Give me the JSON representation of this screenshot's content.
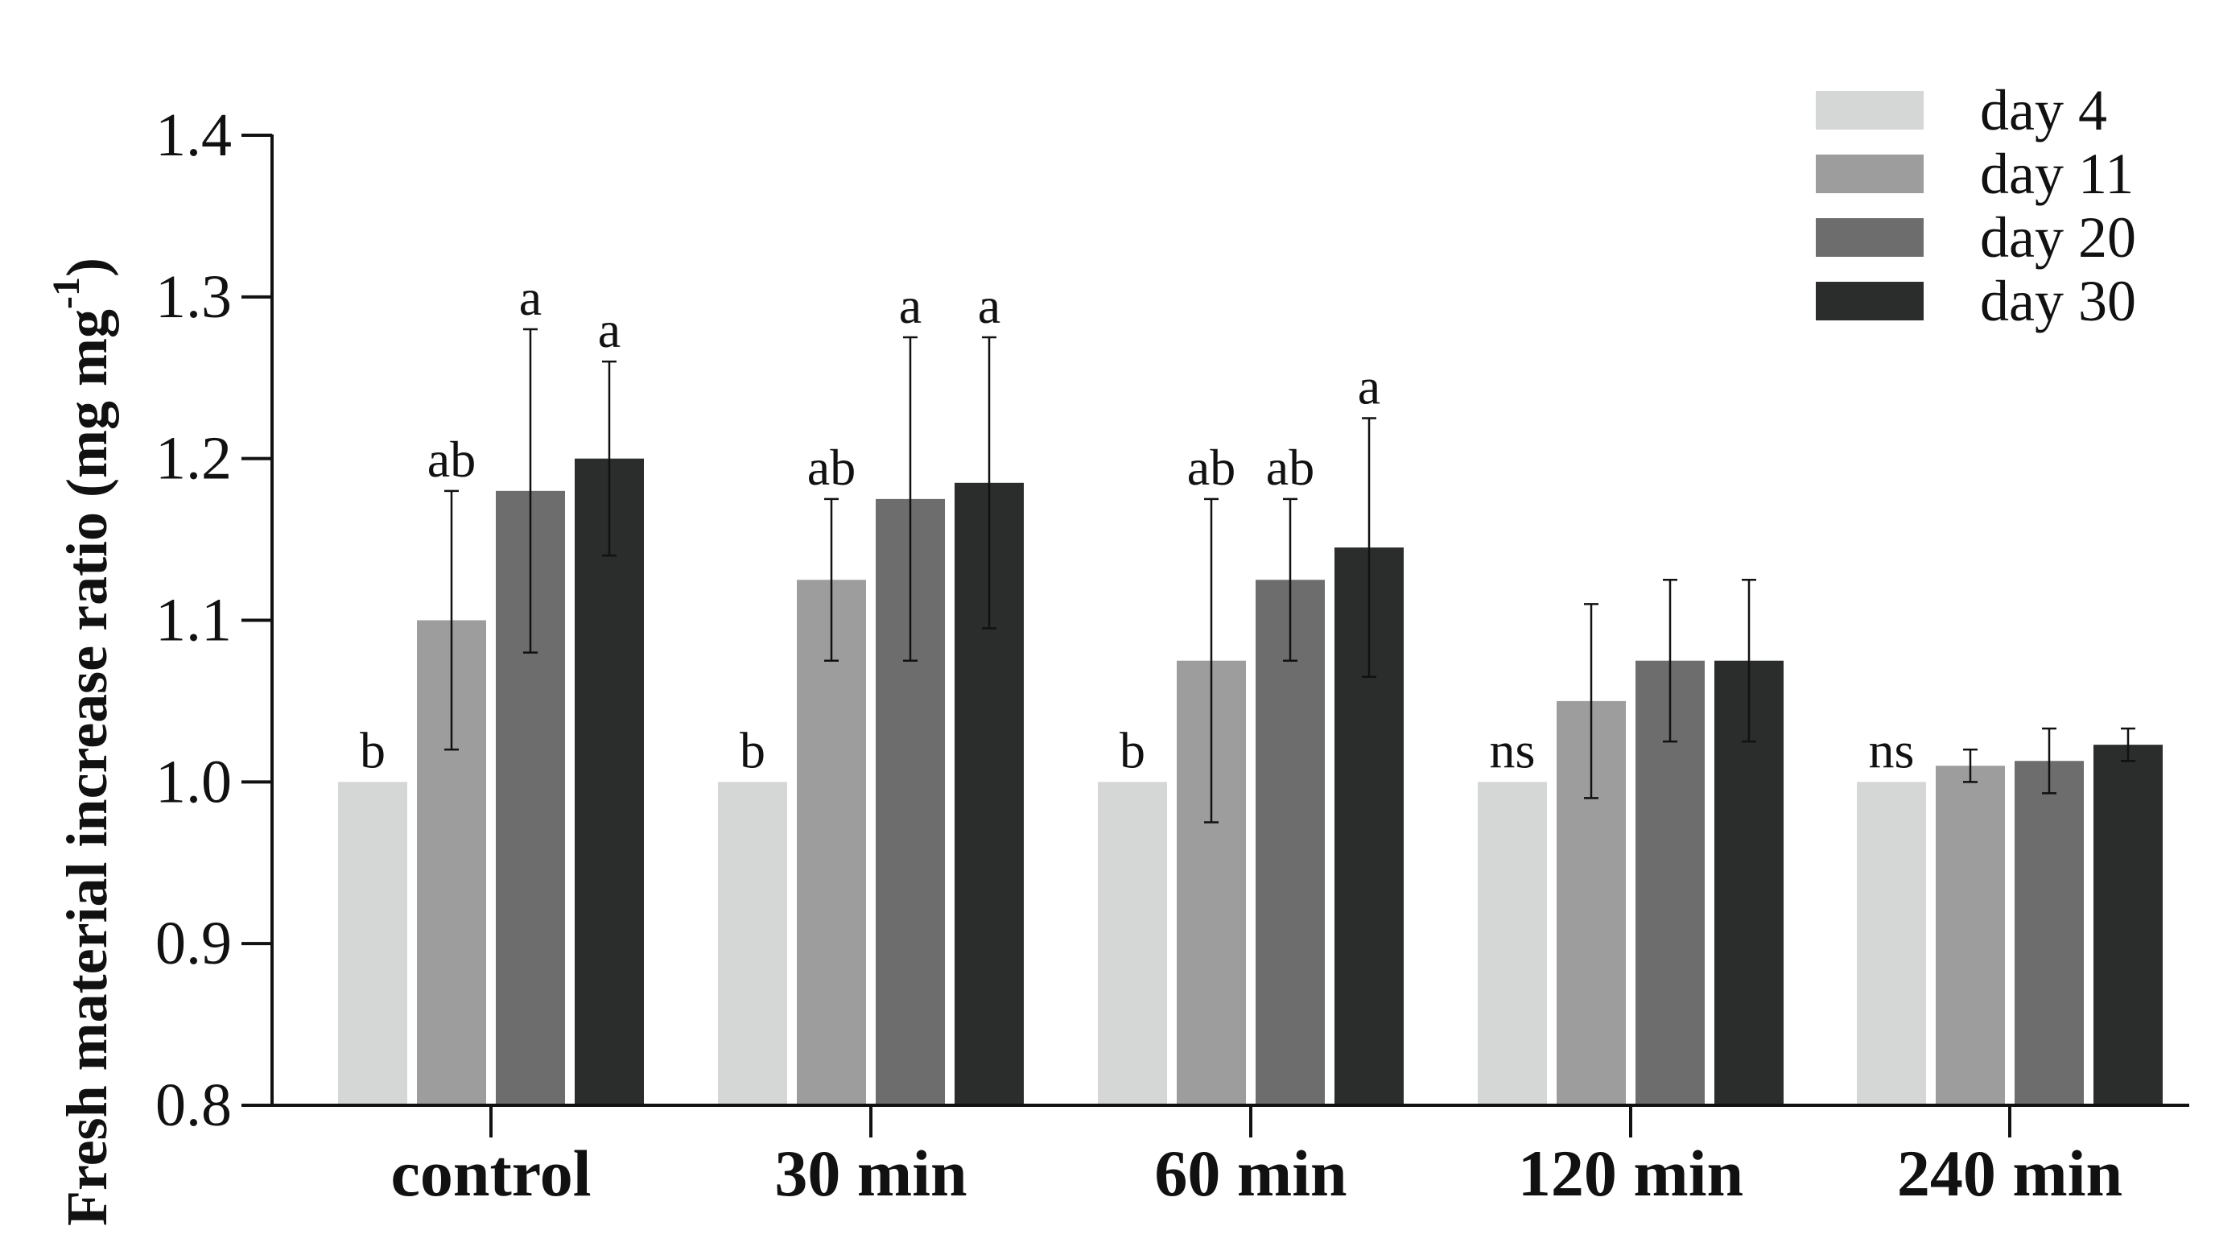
{
  "chart_data": {
    "type": "bar",
    "title": "",
    "xlabel": "",
    "ylabel_main": "Fresh material increase ratio (mg mg",
    "ylabel_sup": "-1",
    "ylabel_close": ")",
    "ylim": [
      0.8,
      1.4
    ],
    "yticks": [
      "0.8",
      "0.9",
      "1.0",
      "1.1",
      "1.2",
      "1.3",
      "1.4"
    ],
    "categories": [
      "control",
      "30 min",
      "60 min",
      "120 min",
      "240 min"
    ],
    "legend_position": "top-right",
    "series": [
      {
        "name": "day 4",
        "color": "#d4d7d6",
        "values": [
          1.0,
          1.0,
          1.0,
          1.0,
          1.0
        ],
        "errors": [
          0,
          0,
          0,
          0,
          0
        ],
        "labels": [
          "b",
          "b",
          "b",
          "ns",
          "ns"
        ]
      },
      {
        "name": "day 11",
        "color": "#9d9d9e",
        "values": [
          1.1,
          1.125,
          1.075,
          1.05,
          1.01
        ],
        "errors": [
          0.08,
          0.05,
          0.1,
          0.06,
          0.01
        ],
        "labels": [
          "ab",
          "ab",
          "ab",
          "",
          ""
        ]
      },
      {
        "name": "day 20",
        "color": "#6d6d6d",
        "values": [
          1.18,
          1.175,
          1.125,
          1.075,
          1.013
        ],
        "errors": [
          0.1,
          0.1,
          0.05,
          0.05,
          0.02
        ],
        "labels": [
          "a",
          "a",
          "ab",
          "",
          ""
        ]
      },
      {
        "name": "day 30",
        "color": "#2a2d2c",
        "values": [
          1.2,
          1.185,
          1.145,
          1.075,
          1.023
        ],
        "errors": [
          0.06,
          0.09,
          0.08,
          0.05,
          0.01
        ],
        "labels": [
          "a",
          "a",
          "a",
          "",
          ""
        ]
      }
    ]
  }
}
